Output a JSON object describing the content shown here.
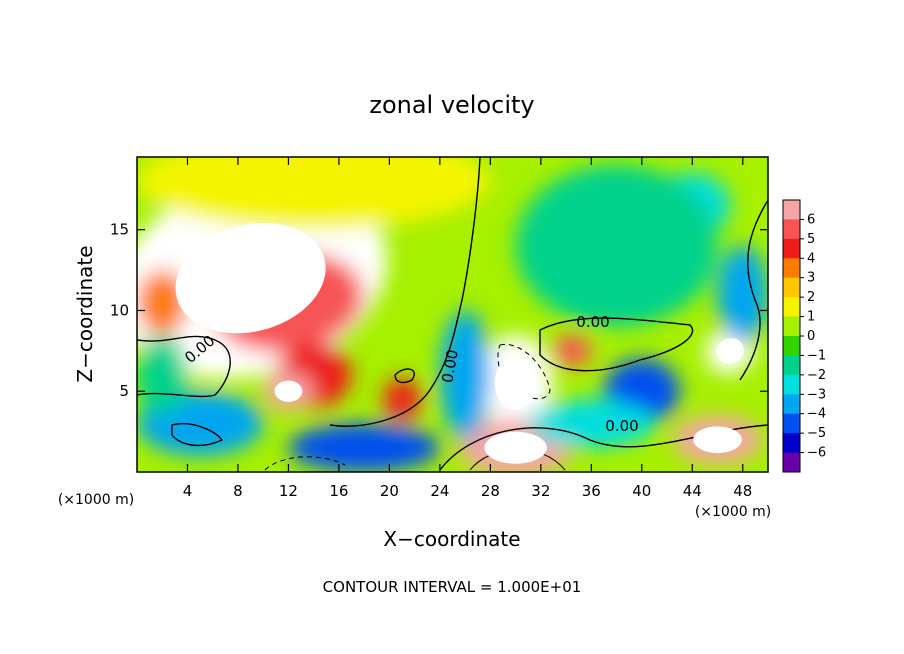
{
  "chart_data": {
    "type": "heatmap",
    "title": "zonal velocity",
    "xlabel": "X−coordinate",
    "ylabel": "Z−coordinate",
    "x_unit_left": "(×1000 m)",
    "x_unit_right": "(×1000 m)",
    "xlim": [
      0,
      50
    ],
    "ylim": [
      0,
      19.5
    ],
    "xticks": [
      4,
      8,
      12,
      16,
      20,
      24,
      28,
      32,
      36,
      40,
      44,
      48
    ],
    "yticks": [
      5,
      10,
      15
    ],
    "colorbar": {
      "ticks": [
        6,
        5,
        4,
        3,
        2,
        1,
        0,
        -1,
        -2,
        -3,
        -4,
        -5,
        -6
      ],
      "tick_labels": [
        "6",
        "5",
        "4",
        "3",
        "2",
        "1",
        "0",
        "−1",
        "−2",
        "−3",
        "−4",
        "−5",
        "−6"
      ],
      "colors": [
        "#f4a6a6",
        "#f75454",
        "#ee1c1c",
        "#ff7a00",
        "#ffc800",
        "#f4f400",
        "#a6f000",
        "#33d400",
        "#00d28c",
        "#00dede",
        "#00a6f0",
        "#0050f0",
        "#0000c8",
        "#6800a8"
      ]
    },
    "contour_labels": [
      "0.00",
      "0.00",
      "0.00",
      "0.00"
    ],
    "footnote": "CONTOUR INTERVAL = 1.000E+01",
    "field_blobs": [
      {
        "x": 9,
        "y": 12,
        "rx": 11,
        "ry": 6,
        "v": 6.5,
        "rot": -15
      },
      {
        "x": 12,
        "y": 10.5,
        "rx": 6,
        "ry": 3,
        "v": 5.5,
        "rot": -10
      },
      {
        "x": 14,
        "y": 6,
        "rx": 3,
        "ry": 2,
        "v": 4.5,
        "rot": 0
      },
      {
        "x": 12,
        "y": 5,
        "rx": 2,
        "ry": 1.2,
        "v": 6,
        "rot": 0
      },
      {
        "x": 21,
        "y": 4.5,
        "rx": 1.5,
        "ry": 1.3,
        "v": 4.5,
        "rot": 0
      },
      {
        "x": 30,
        "y": 5.5,
        "rx": 3,
        "ry": 3,
        "v": 7,
        "rot": 0
      },
      {
        "x": 30,
        "y": 1.5,
        "rx": 4.5,
        "ry": 1.8,
        "v": 6,
        "rot": 0
      },
      {
        "x": 34.5,
        "y": 7.5,
        "rx": 1.5,
        "ry": 1,
        "v": 5.5,
        "rot": 0
      },
      {
        "x": 46,
        "y": 2,
        "rx": 3.5,
        "ry": 1.5,
        "v": 6,
        "rot": 0
      },
      {
        "x": 47,
        "y": 7.5,
        "rx": 2,
        "ry": 1.4,
        "v": 6.5,
        "rot": -20
      },
      {
        "x": 2,
        "y": 10.5,
        "rx": 2,
        "ry": 2,
        "v": 3.5,
        "rot": 0
      },
      {
        "x": 14,
        "y": 18,
        "rx": 14,
        "ry": 3,
        "v": 1.5,
        "rot": 0
      },
      {
        "x": 5,
        "y": 3,
        "rx": 5,
        "ry": 2,
        "v": -3.5,
        "rot": 0
      },
      {
        "x": 18,
        "y": 1.5,
        "rx": 6,
        "ry": 1.5,
        "v": -4.5,
        "rot": 0
      },
      {
        "x": 26,
        "y": 6,
        "rx": 2,
        "ry": 4,
        "v": -4,
        "rot": 0
      },
      {
        "x": 40,
        "y": 5,
        "rx": 3,
        "ry": 2,
        "v": -4.5,
        "rot": 0
      },
      {
        "x": 48,
        "y": 11,
        "rx": 2,
        "ry": 3,
        "v": -3.5,
        "rot": 0
      },
      {
        "x": 44,
        "y": 16.5,
        "rx": 3,
        "ry": 2,
        "v": -2.5,
        "rot": 0
      },
      {
        "x": 38,
        "y": 14,
        "rx": 8,
        "ry": 5,
        "v": -1.5,
        "rot": 0
      },
      {
        "x": 2,
        "y": 6,
        "rx": 2,
        "ry": 2.5,
        "v": -2,
        "rot": 0
      },
      {
        "x": 36,
        "y": 3,
        "rx": 5,
        "ry": 1.5,
        "v": -2.5,
        "rot": 0
      }
    ]
  }
}
